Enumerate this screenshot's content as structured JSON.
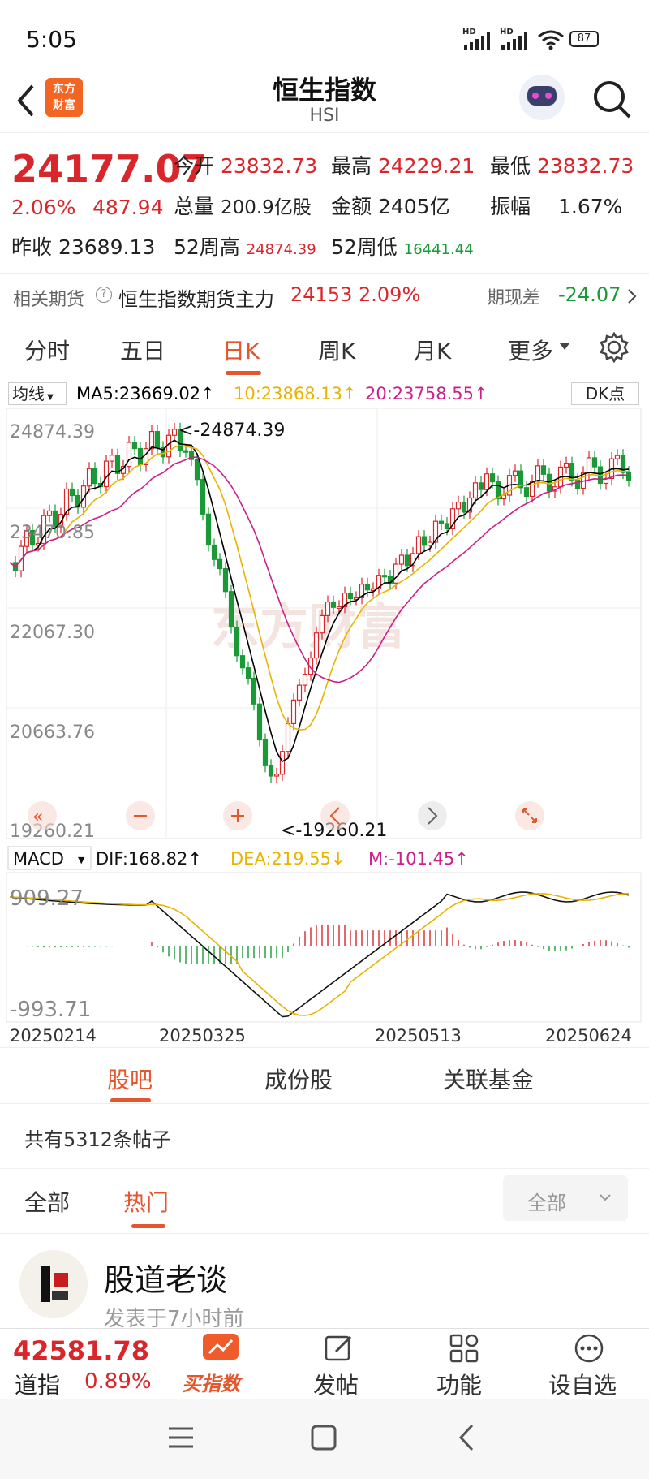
{
  "status": {
    "time": "5:05",
    "battery": "87",
    "sig1": "HD",
    "sig2": "HD"
  },
  "header": {
    "title": "恒生指数",
    "subtitle": "HSI",
    "logo_line1": "东方",
    "logo_line2": "财富"
  },
  "quote": {
    "price": "24177.07",
    "change_pct": "2.06%",
    "change": "487.94",
    "open_label": "今开",
    "open": "23832.73",
    "high_label": "最高",
    "high": "24229.21",
    "low_label": "最低",
    "low": "23832.73",
    "volume_label": "总量",
    "volume": "200.9亿股",
    "amount_label": "金额",
    "amount": "2405亿",
    "amplitude_label": "振幅",
    "amplitude": "1.67%",
    "prev_close_label": "昨收",
    "prev_close": "23689.13",
    "wk52_high_label": "52周高",
    "wk52_high": "24874.39",
    "wk52_low_label": "52周低",
    "wk52_low": "16441.44"
  },
  "futures": {
    "label": "相关期货",
    "name": "恒生指数期货主力",
    "price": "24153",
    "pct": "2.09%",
    "basis_label": "期现差",
    "basis": "-24.07"
  },
  "tabs": [
    "分时",
    "五日",
    "日K",
    "周K",
    "月K",
    "更多"
  ],
  "active_tab": 2,
  "ma_bar": {
    "selector": "均线",
    "ma5": "MA5:23669.02↑",
    "ma10": "10:23868.13↑",
    "ma20": "20:23758.55↑",
    "dk": "DK点"
  },
  "chart": {
    "y_labels": [
      "24874.39",
      "23470.85",
      "22067.30",
      "20663.76",
      "19260.21"
    ],
    "high_marker": "<-24874.39",
    "low_marker": "<-19260.21",
    "watermark": "东方财富"
  },
  "macd_bar": {
    "selector": "MACD",
    "dif": "DIF:168.82↑",
    "dea": "DEA:219.55↓",
    "m": "M:-101.45↑"
  },
  "macd": {
    "y_labels": [
      "909.27",
      "-993.71"
    ],
    "dates": [
      "20250214",
      "20250325",
      "20250513",
      "20250624"
    ]
  },
  "colors": {
    "up": "#d9262b",
    "down": "#1a9a37",
    "ma5": "#000000",
    "ma10": "#e8b400",
    "ma20": "#cc1f8a",
    "accent": "#e4572e"
  },
  "section_tabs": [
    "股吧",
    "成份股",
    "关联基金"
  ],
  "posts": {
    "count": "共有5312条帖子",
    "filter1": "全部",
    "filter2": "热门",
    "dropdown": "全部"
  },
  "post": {
    "author": "股道老谈",
    "time": "发表于7小时前"
  },
  "bottom_quote": {
    "price": "42581.78",
    "name": "道指",
    "pct": "0.89%"
  },
  "nav": [
    "买指数",
    "发帖",
    "功能",
    "设自选"
  ]
}
